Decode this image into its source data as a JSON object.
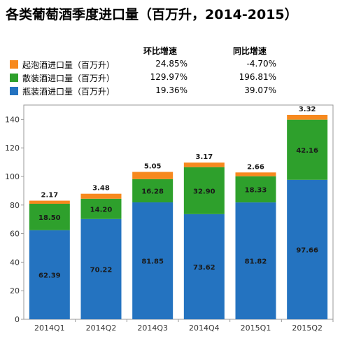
{
  "title": "各类葡萄酒季度进口量（百万升，2014-2015）",
  "legend": {
    "header_qoq": "环比增速",
    "header_yoy": "同比增速",
    "items": [
      {
        "name": "起泡酒进口量（百万升）",
        "color": "#f7891e",
        "qoq": "24.85%",
        "yoy": "-4.70%"
      },
      {
        "name": "散装酒进口量（百万升）",
        "color": "#2ea02c",
        "qoq": "129.97%",
        "yoy": "196.81%"
      },
      {
        "name": "瓶装酒进口量（百万升）",
        "color": "#2473c0",
        "qoq": "19.36%",
        "yoy": "39.07%"
      }
    ]
  },
  "chart_data": {
    "type": "bar",
    "stacked": true,
    "categories": [
      "2014Q1",
      "2014Q2",
      "2014Q3",
      "2014Q4",
      "2015Q1",
      "2015Q2"
    ],
    "series": [
      {
        "name": "瓶装酒进口量（百万升）",
        "values": [
          62.39,
          70.22,
          81.85,
          73.62,
          81.82,
          97.66
        ]
      },
      {
        "name": "散装酒进口量（百万升）",
        "values": [
          18.5,
          14.2,
          16.28,
          32.9,
          18.33,
          42.16
        ]
      },
      {
        "name": "起泡酒进口量（百万升）",
        "values": [
          2.17,
          3.48,
          5.05,
          3.17,
          2.66,
          3.32
        ]
      }
    ],
    "value_labels": [
      [
        "62.39",
        "70.22",
        "81.85",
        "73.62",
        "81.82",
        "97.66"
      ],
      [
        "18.50",
        "14.20",
        "16.28",
        "32.90",
        "18.33",
        "42.16"
      ],
      [
        "2.17",
        "3.48",
        "5.05",
        "3.17",
        "2.66",
        "3.32"
      ]
    ],
    "ylim": [
      0,
      150
    ],
    "yticks": [
      "0",
      "20",
      "40",
      "60",
      "80",
      "100",
      "120",
      "140"
    ],
    "grid": false,
    "legend_position": "top-left",
    "colors": {
      "bottled": "#2473c0",
      "bulk": "#2ea02c",
      "sparkling": "#f7891e"
    }
  }
}
